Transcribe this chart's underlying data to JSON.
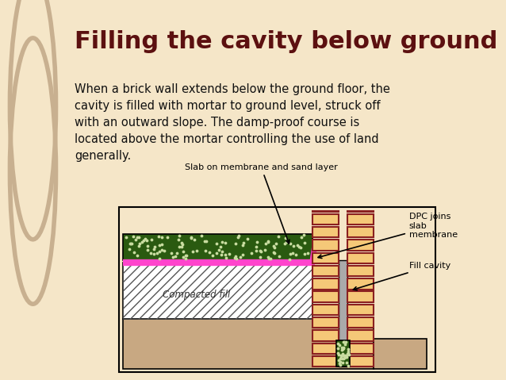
{
  "title": "Filling the cavity below ground",
  "title_color": "#5c1010",
  "bg_color": "#f5e6c8",
  "left_panel_color": "#d4bc96",
  "body_text": "When a brick wall extends below the ground floor, the\ncavity is filled with mortar to ground level, struck off\nwith an outward slope. The damp-proof course is\nlocated above the mortar controlling the use of land\ngenerally.",
  "label_slab_membrane_sand": "Slab on membrane and sand layer",
  "label_dpc": "DPC joins\nslab\nmembrane",
  "label_fill_cavity": "Fill cavity",
  "label_compacted_fill": "Compacted fill",
  "diagram": {
    "ground_color": "#c8a882",
    "fill_color": "#c8a882",
    "compacted_hatch_color": "#555555",
    "slab_color": "#4a7a2a",
    "slab_dots_color": "#c8dca0",
    "membrane_color": "#ff44cc",
    "brick_face_color": "#f5c878",
    "brick_mortar_color": "#8b2020",
    "cavity_fill_color": "#888888",
    "footing_slab_color": "#3a6a1a",
    "outline_color": "#000000"
  }
}
